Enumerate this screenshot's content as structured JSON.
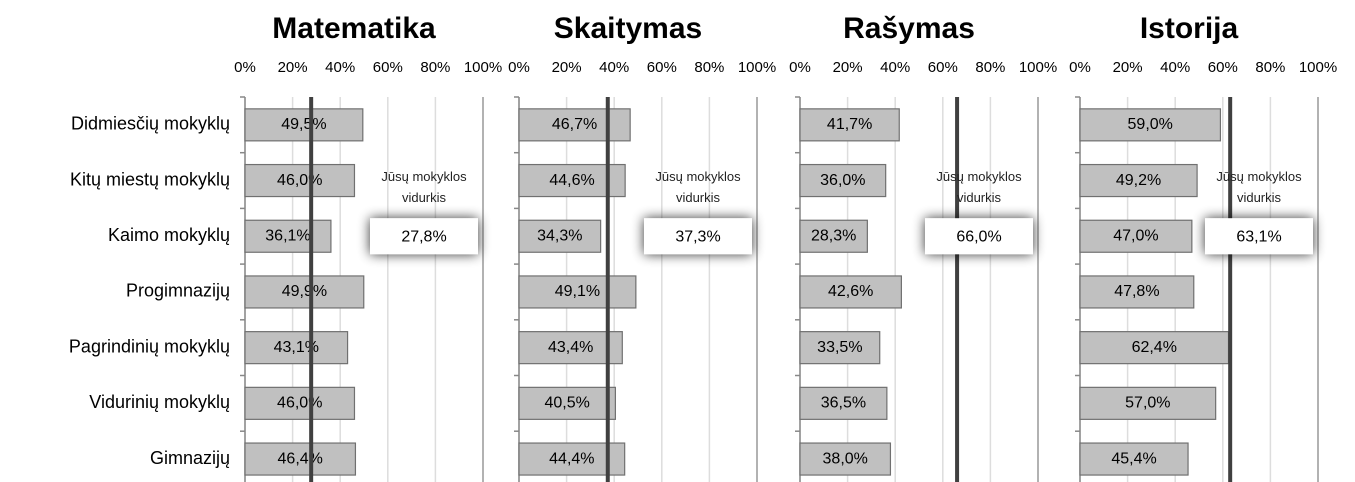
{
  "chart_data": [
    {
      "type": "hbar",
      "title": "Matematika",
      "categories": [
        "Didmiesčių mokyklų",
        "Kitų miestų mokyklų",
        "Kaimo mokyklų",
        "Progimnazijų",
        "Pagrindinių mokyklų",
        "Vidurinių mokyklų",
        "Gimnazijų"
      ],
      "values": [
        49.5,
        46.0,
        36.1,
        49.9,
        43.1,
        46.0,
        46.4
      ],
      "value_labels": [
        "49,5%",
        "46,0%",
        "36,1%",
        "49,9%",
        "43,1%",
        "46,0%",
        "46,4%"
      ],
      "color": "#c0c0c0",
      "xlim": [
        0,
        100
      ],
      "xticks": [
        {
          "value": 0,
          "label": "0%"
        },
        {
          "value": 20,
          "label": "20%"
        },
        {
          "value": 40,
          "label": "40%"
        },
        {
          "value": 60,
          "label": "60%"
        },
        {
          "value": 80,
          "label": "80%"
        },
        {
          "value": 100,
          "label": "100%"
        }
      ],
      "grid": true,
      "reference": {
        "label": "Jūsų mokyklos vidurkis",
        "value": 27.8,
        "value_label": "27,8%"
      }
    },
    {
      "type": "hbar",
      "title": "Skaitymas",
      "values": [
        46.7,
        44.6,
        34.3,
        49.1,
        43.4,
        40.5,
        44.4
      ],
      "value_labels": [
        "46,7%",
        "44,6%",
        "34,3%",
        "49,1%",
        "43,4%",
        "40,5%",
        "44,4%"
      ],
      "color": "#c0c0c0",
      "xlim": [
        0,
        100
      ],
      "xticks": [
        {
          "value": 0,
          "label": "0%"
        },
        {
          "value": 20,
          "label": "20%"
        },
        {
          "value": 40,
          "label": "40%"
        },
        {
          "value": 60,
          "label": "60%"
        },
        {
          "value": 80,
          "label": "80%"
        },
        {
          "value": 100,
          "label": "100%"
        }
      ],
      "grid": true,
      "reference": {
        "label": "Jūsų mokyklos vidurkis",
        "value": 37.3,
        "value_label": "37,3%"
      }
    },
    {
      "type": "hbar",
      "title": "Rašymas",
      "values": [
        41.7,
        36.0,
        28.3,
        42.6,
        33.5,
        36.5,
        38.0
      ],
      "value_labels": [
        "41,7%",
        "36,0%",
        "28,3%",
        "42,6%",
        "33,5%",
        "36,5%",
        "38,0%"
      ],
      "color": "#c0c0c0",
      "xlim": [
        0,
        100
      ],
      "xticks": [
        {
          "value": 0,
          "label": "0%"
        },
        {
          "value": 20,
          "label": "20%"
        },
        {
          "value": 40,
          "label": "40%"
        },
        {
          "value": 60,
          "label": "60%"
        },
        {
          "value": 80,
          "label": "80%"
        },
        {
          "value": 100,
          "label": "100%"
        }
      ],
      "grid": true,
      "reference": {
        "label": "Jūsų mokyklos vidurkis",
        "value": 66.0,
        "value_label": "66,0%"
      }
    },
    {
      "type": "hbar",
      "title": "Istorija",
      "values": [
        59.0,
        49.2,
        47.0,
        47.8,
        62.4,
        57.0,
        45.4
      ],
      "value_labels": [
        "59,0%",
        "49,2%",
        "47,0%",
        "47,8%",
        "62,4%",
        "57,0%",
        "45,4%"
      ],
      "color": "#c0c0c0",
      "xlim": [
        0,
        100
      ],
      "xticks": [
        {
          "value": 0,
          "label": "0%"
        },
        {
          "value": 20,
          "label": "20%"
        },
        {
          "value": 40,
          "label": "40%"
        },
        {
          "value": 60,
          "label": "60%"
        },
        {
          "value": 80,
          "label": "80%"
        },
        {
          "value": 100,
          "label": "100%"
        }
      ],
      "grid": true,
      "reference": {
        "label": "Jūsų mokyklos vidurkis",
        "value": 63.1,
        "value_label": "63,1%"
      }
    }
  ]
}
